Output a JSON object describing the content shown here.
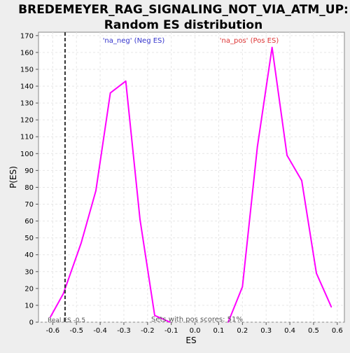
{
  "chart_data": {
    "type": "line",
    "title_line1": "BREDEMEYER_RAG_SIGNALING_NOT_VIA_ATM_UP:",
    "title_line2": "Random ES distribution",
    "xlabel": "ES",
    "ylabel": "P(ES)",
    "xlim": [
      -0.66,
      0.63
    ],
    "ylim": [
      0,
      172
    ],
    "x_ticks": [
      -0.6,
      -0.5,
      -0.4,
      -0.3,
      -0.2,
      -0.1,
      0.0,
      0.1,
      0.2,
      0.3,
      0.4,
      0.5,
      0.6
    ],
    "x_tick_labels": [
      "-0.6",
      "-0.5",
      "-0.4",
      "-0.3",
      "-0.2",
      "-0.1",
      "0.0",
      "0.1",
      "0.2",
      "0.3",
      "0.4",
      "0.5",
      "0.6"
    ],
    "y_ticks": [
      0,
      10,
      20,
      30,
      40,
      50,
      60,
      70,
      80,
      90,
      100,
      110,
      120,
      130,
      140,
      150,
      160,
      170
    ],
    "grid": true,
    "series": [
      {
        "name": "'na_neg' (Neg ES)",
        "color": "#ff00ff",
        "x": [
          -0.61,
          -0.555,
          -0.48,
          -0.418,
          -0.357,
          -0.292,
          -0.232,
          -0.17,
          -0.105
        ],
        "y": [
          3,
          17,
          47,
          78,
          136,
          143,
          61,
          4,
          0
        ]
      },
      {
        "name": "'na_pos' (Pos ES)",
        "color": "#ff00ff",
        "x": [
          0.14,
          0.2,
          0.263,
          0.325,
          0.388,
          0.45,
          0.512,
          0.575
        ],
        "y": [
          0,
          21,
          104,
          163,
          99,
          84,
          29,
          9
        ]
      }
    ],
    "legend_neg": {
      "label": "'na_neg' (Neg ES)",
      "color": "#3333cc"
    },
    "legend_pos": {
      "label": "'na_pos' (Pos ES)",
      "color": "#dd3333"
    },
    "real_es": {
      "value": -0.548,
      "label": "Real ES -0.5"
    },
    "annotation": "Sets with pos scores: 51%"
  }
}
